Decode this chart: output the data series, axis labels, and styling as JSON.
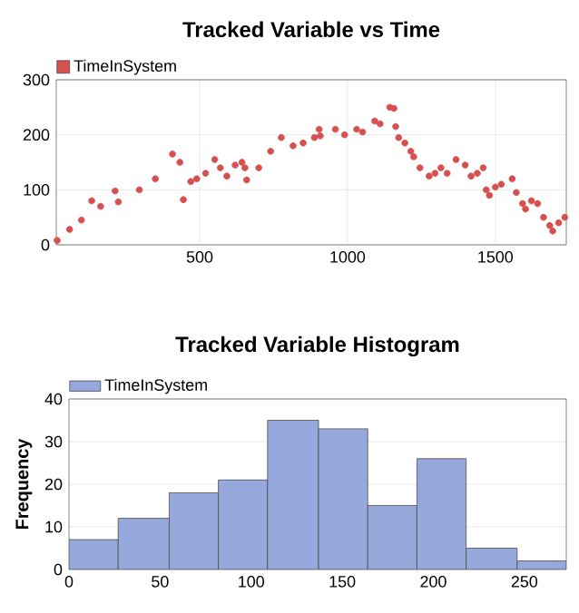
{
  "chart_data": [
    {
      "type": "scatter",
      "title": "Tracked Variable vs Time",
      "legend": "top left",
      "grid": true,
      "xlim": [
        15,
        1740
      ],
      "ylim": [
        0,
        300
      ],
      "xticks": [
        500,
        1000,
        1500
      ],
      "yticks": [
        0,
        100,
        200,
        300
      ],
      "series": [
        {
          "name": "TimeInSystem",
          "color": "#d65050",
          "x": [
            18,
            60,
            100,
            135,
            165,
            214,
            225,
            296,
            350,
            408,
            433,
            445,
            470,
            490,
            520,
            551,
            570,
            592,
            620,
            643,
            653,
            659,
            700,
            740,
            776,
            816,
            850,
            888,
            904,
            908,
            959,
            990,
            1031,
            1051,
            1092,
            1110,
            1143,
            1157,
            1163,
            1173,
            1194,
            1214,
            1224,
            1245,
            1276,
            1296,
            1316,
            1337,
            1367,
            1398,
            1418,
            1439,
            1459,
            1469,
            1480,
            1500,
            1520,
            1557,
            1571,
            1592,
            1602,
            1622,
            1643,
            1663,
            1684,
            1694,
            1714,
            1735
          ],
          "values": [
            8,
            28,
            45,
            80,
            70,
            98,
            78,
            100,
            120,
            165,
            150,
            82,
            115,
            120,
            130,
            155,
            140,
            125,
            145,
            150,
            140,
            118,
            140,
            170,
            195,
            180,
            185,
            195,
            210,
            198,
            210,
            200,
            210,
            205,
            225,
            220,
            250,
            248,
            215,
            195,
            185,
            170,
            160,
            140,
            125,
            130,
            140,
            130,
            155,
            145,
            125,
            130,
            140,
            100,
            90,
            105,
            110,
            120,
            95,
            75,
            65,
            80,
            75,
            50,
            35,
            25,
            40,
            50
          ]
        }
      ]
    },
    {
      "type": "histogram",
      "title": "Tracked Variable Histogram",
      "ylabel": "Frequency",
      "legend": "top left",
      "grid": "y",
      "xlim": [
        0,
        273
      ],
      "ylim": [
        0,
        40
      ],
      "xticks": [
        0,
        50,
        100,
        150,
        200,
        250
      ],
      "yticks": [
        0,
        10,
        20,
        30,
        40
      ],
      "bins": [
        0,
        27,
        55,
        82,
        109,
        137,
        164,
        191,
        218,
        246,
        273
      ],
      "series": [
        {
          "name": "TimeInSystem",
          "color": "#96a8dc",
          "values": [
            7,
            12,
            18,
            21,
            35,
            33,
            15,
            26,
            5,
            2
          ]
        }
      ]
    }
  ]
}
